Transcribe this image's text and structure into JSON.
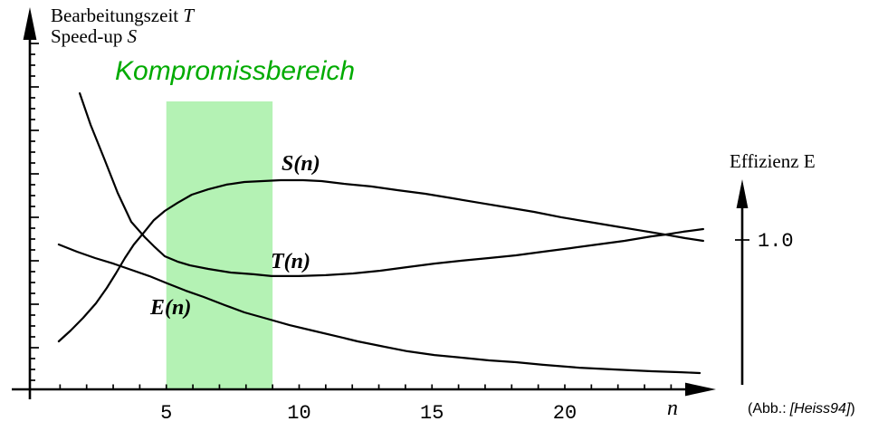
{
  "figure": {
    "title_line1": "Bearbeitungszeit",
    "title_line1_var": "T",
    "title_line2": "Speed-up",
    "title_line2_var": "S",
    "band_label": "Kompromissbereich",
    "right_axis_title": "Effizienz",
    "right_axis_title_var": "E",
    "x_axis_var": "n",
    "credit_prefix": "(Abb.:",
    "credit_ref": "[Heiss94]",
    "credit_suffix": ")"
  },
  "curve_labels": {
    "S": "S(n)",
    "T": "T(n)",
    "E": "E(n)"
  },
  "colors": {
    "band": "#b4f2b4",
    "band_label_text": "#00ab00",
    "curve": "#000000"
  },
  "chart_data": {
    "type": "line",
    "title": "",
    "xlabel": "n",
    "ylabel_left": "Bearbeitungszeit T / Speed-up S (relative Einheiten, Achse unbeschriftet)",
    "ylabel_right": "Effizienz E",
    "x_range": [
      0,
      25.5
    ],
    "x_ticks": [
      5,
      10,
      15,
      20
    ],
    "x_minor_tick_range": [
      1,
      24
    ],
    "right_axis_ticks": [
      {
        "value": 1.0,
        "label": "1.0"
      }
    ],
    "highlight_region": {
      "from": 5,
      "to": 9,
      "label": "Kompromissbereich"
    },
    "grid": false,
    "legend_position": "inline-labels",
    "series": [
      {
        "key": "S",
        "name": "S(n)",
        "points": [
          [
            0.95,
            0.321
          ],
          [
            1.4,
            0.394
          ],
          [
            1.87,
            0.479
          ],
          [
            2.35,
            0.576
          ],
          [
            2.76,
            0.679
          ],
          [
            3.1,
            0.776
          ],
          [
            3.44,
            0.879
          ],
          [
            3.78,
            0.97
          ],
          [
            4.12,
            1.042
          ],
          [
            4.53,
            1.133
          ],
          [
            4.94,
            1.194
          ],
          [
            5.42,
            1.248
          ],
          [
            5.96,
            1.303
          ],
          [
            6.58,
            1.339
          ],
          [
            7.26,
            1.37
          ],
          [
            7.94,
            1.388
          ],
          [
            8.62,
            1.394
          ],
          [
            9.3,
            1.4
          ],
          [
            10.15,
            1.4
          ],
          [
            10.84,
            1.394
          ],
          [
            11.69,
            1.376
          ],
          [
            12.71,
            1.358
          ],
          [
            13.73,
            1.333
          ],
          [
            14.75,
            1.309
          ],
          [
            15.78,
            1.279
          ],
          [
            16.8,
            1.248
          ],
          [
            17.82,
            1.218
          ],
          [
            18.84,
            1.188
          ],
          [
            19.86,
            1.152
          ],
          [
            20.89,
            1.121
          ],
          [
            21.91,
            1.091
          ],
          [
            22.93,
            1.061
          ],
          [
            23.78,
            1.036
          ],
          [
            24.53,
            1.012
          ],
          [
            25.21,
            0.994
          ]
        ]
      },
      {
        "key": "T",
        "name": "T(n)",
        "points": [
          [
            1.74,
            1.982
          ],
          [
            2.15,
            1.77
          ],
          [
            2.66,
            1.545
          ],
          [
            3.17,
            1.315
          ],
          [
            3.68,
            1.121
          ],
          [
            4.19,
            1.018
          ],
          [
            4.53,
            0.958
          ],
          [
            4.94,
            0.891
          ],
          [
            5.42,
            0.855
          ],
          [
            5.89,
            0.83
          ],
          [
            6.58,
            0.806
          ],
          [
            7.43,
            0.782
          ],
          [
            8.28,
            0.77
          ],
          [
            8.96,
            0.758
          ],
          [
            9.98,
            0.758
          ],
          [
            11.0,
            0.764
          ],
          [
            12.03,
            0.776
          ],
          [
            13.05,
            0.794
          ],
          [
            14.07,
            0.818
          ],
          [
            15.09,
            0.842
          ],
          [
            16.12,
            0.861
          ],
          [
            17.14,
            0.879
          ],
          [
            18.16,
            0.897
          ],
          [
            19.18,
            0.921
          ],
          [
            20.2,
            0.945
          ],
          [
            21.23,
            0.97
          ],
          [
            22.25,
            0.994
          ],
          [
            23.27,
            1.024
          ],
          [
            23.78,
            1.036
          ],
          [
            24.46,
            1.055
          ],
          [
            25.21,
            1.073
          ]
        ]
      },
      {
        "key": "E",
        "name": "E(n)",
        "axis": "right",
        "points": [
          [
            0.95,
            0.97
          ],
          [
            1.64,
            0.921
          ],
          [
            2.32,
            0.879
          ],
          [
            3.0,
            0.842
          ],
          [
            3.68,
            0.8
          ],
          [
            4.36,
            0.758
          ],
          [
            5.04,
            0.709
          ],
          [
            5.72,
            0.661
          ],
          [
            6.41,
            0.618
          ],
          [
            7.19,
            0.564
          ],
          [
            7.94,
            0.515
          ],
          [
            8.79,
            0.473
          ],
          [
            9.64,
            0.43
          ],
          [
            10.49,
            0.394
          ],
          [
            11.35,
            0.358
          ],
          [
            12.2,
            0.321
          ],
          [
            13.05,
            0.291
          ],
          [
            14.07,
            0.255
          ],
          [
            15.09,
            0.23
          ],
          [
            16.12,
            0.212
          ],
          [
            17.14,
            0.194
          ],
          [
            18.16,
            0.182
          ],
          [
            19.18,
            0.164
          ],
          [
            20.55,
            0.145
          ],
          [
            21.91,
            0.133
          ],
          [
            23.27,
            0.121
          ],
          [
            24.29,
            0.115
          ],
          [
            25.08,
            0.109
          ]
        ]
      }
    ]
  }
}
